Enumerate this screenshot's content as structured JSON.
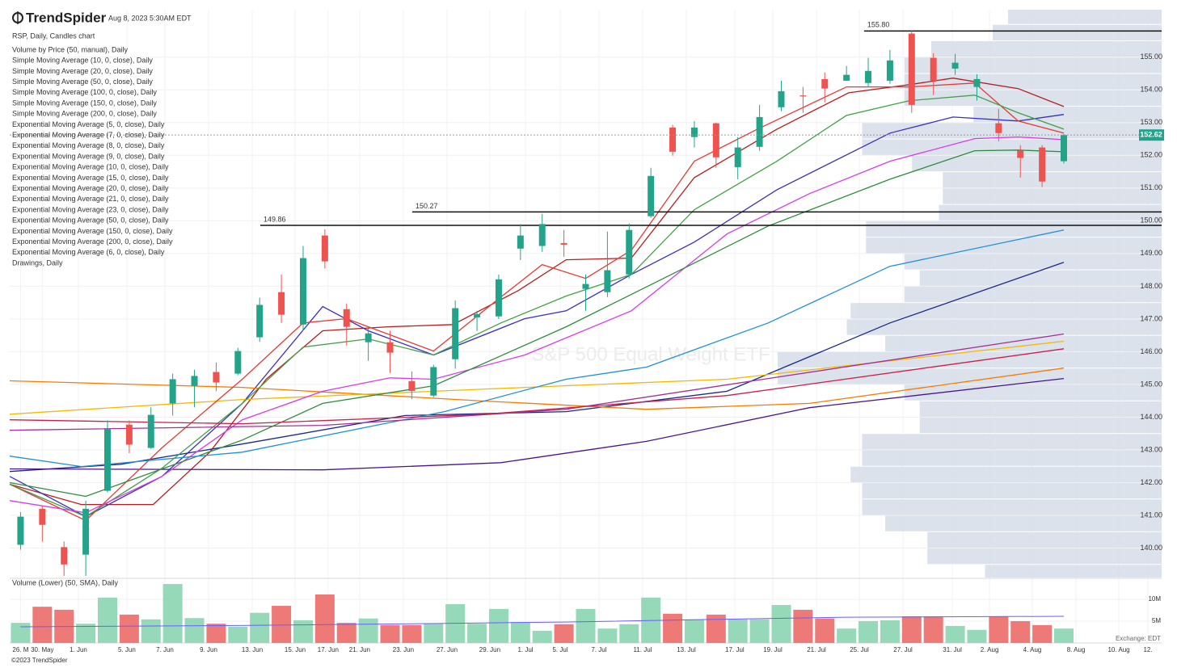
{
  "brand": "TrendSpider",
  "timestamp": "Aug 8, 2023 5:30AM EDT",
  "footer": "©2023 TrendSpider",
  "exchange": "Exchange: EDT",
  "chart_data": {
    "type": "candlestick",
    "subtitle": "RSP, Daily, Candles chart",
    "watermark": "S&P 500 Equal Weight ETF",
    "up_color": "#22a38a",
    "down_color": "#ef5350",
    "xlim": [
      -0.5,
      52.5
    ],
    "xticks": [
      {
        "value": 0,
        "label": "26. M"
      },
      {
        "value": 1,
        "label": "30. May"
      },
      {
        "value": 2.66,
        "label": "1. Jun"
      },
      {
        "value": 4.89,
        "label": "5. Jun"
      },
      {
        "value": 6.64,
        "label": "7. Jun"
      },
      {
        "value": 8.65,
        "label": "9. Jun"
      },
      {
        "value": 10.66,
        "label": "13. Jun"
      },
      {
        "value": 12.63,
        "label": "15. Jun"
      },
      {
        "value": 14.15,
        "label": "17. Jun"
      },
      {
        "value": 15.6,
        "label": "21. Jun"
      },
      {
        "value": 17.61,
        "label": "23. Jun"
      },
      {
        "value": 19.62,
        "label": "27. Jun"
      },
      {
        "value": 21.59,
        "label": "29. Jun"
      },
      {
        "value": 23.23,
        "label": "1. Jul"
      },
      {
        "value": 24.83,
        "label": "5. Jul"
      },
      {
        "value": 26.61,
        "label": "7. Jul"
      },
      {
        "value": 28.62,
        "label": "11. Jul"
      },
      {
        "value": 30.63,
        "label": "13. Jul"
      },
      {
        "value": 32.86,
        "label": "17. Jul"
      },
      {
        "value": 34.61,
        "label": "19. Jul"
      },
      {
        "value": 36.62,
        "label": "21. Jul"
      },
      {
        "value": 38.59,
        "label": "25. Jul"
      },
      {
        "value": 40.6,
        "label": "27. Jul"
      },
      {
        "value": 42.87,
        "label": "31. Jul"
      },
      {
        "value": 44.58,
        "label": "2. Aug"
      },
      {
        "value": 46.55,
        "label": "4. Aug"
      },
      {
        "value": 48.56,
        "label": "8. Aug"
      },
      {
        "value": 50.53,
        "label": "10. Aug"
      },
      {
        "value": 51.87,
        "label": "12."
      }
    ],
    "ylim": [
      139.1,
      156.45
    ],
    "yticks": [
      {
        "value": 140,
        "label": "140.00"
      },
      {
        "value": 141,
        "label": "141.00"
      },
      {
        "value": 142,
        "label": "142.00"
      },
      {
        "value": 143,
        "label": "143.00"
      },
      {
        "value": 144,
        "label": "144.00"
      },
      {
        "value": 145,
        "label": "145.00"
      },
      {
        "value": 146,
        "label": "146.00"
      },
      {
        "value": 147,
        "label": "147.00"
      },
      {
        "value": 148,
        "label": "148.00"
      },
      {
        "value": 149,
        "label": "149.00"
      },
      {
        "value": 150,
        "label": "150.00"
      },
      {
        "value": 151,
        "label": "151.00"
      },
      {
        "value": 152,
        "label": "152.00"
      },
      {
        "value": 153,
        "label": "153.00"
      },
      {
        "value": 154,
        "label": "154.00"
      },
      {
        "value": 155,
        "label": "155.00"
      }
    ],
    "grid": true,
    "last_price": 152.62,
    "open": [
      140.1,
      141.2,
      140.03,
      139.8,
      141.75,
      143.77,
      143.06,
      144.42,
      144.96,
      145.38,
      145.33,
      146.44,
      147.82,
      146.83,
      149.55,
      147.3,
      146.29,
      146.29,
      145.1,
      144.66,
      145.77,
      147.05,
      147.08,
      149.15,
      149.23,
      149.32,
      147.92,
      147.82,
      148.36,
      150.14,
      152.85,
      152.56,
      152.98,
      151.64,
      152.26,
      153.47,
      153.83,
      154.33,
      154.28,
      154.21,
      154.28,
      155.72,
      154.98,
      154.65,
      154.09,
      152.98,
      152.14,
      152.24,
      151.82
    ],
    "high": [
      141.1,
      141.3,
      140.2,
      141.45,
      143.9,
      143.9,
      144.3,
      145.33,
      145.45,
      145.67,
      146.12,
      147.65,
      148.36,
      149.23,
      149.74,
      147.47,
      146.76,
      146.64,
      145.4,
      145.6,
      147.57,
      147.25,
      148.36,
      149.9,
      150.21,
      149.72,
      148.36,
      149.67,
      149.92,
      151.62,
      152.93,
      153.05,
      153.0,
      152.56,
      153.54,
      154.28,
      154.09,
      154.53,
      154.73,
      154.98,
      155.22,
      155.8,
      155.12,
      155.1,
      154.48,
      153.42,
      152.31,
      152.31,
      152.65
    ],
    "low": [
      139.95,
      140.2,
      139.15,
      139.15,
      141.7,
      142.9,
      143.03,
      144.05,
      144.3,
      144.79,
      145.28,
      146.3,
      146.88,
      146.64,
      148.54,
      146.19,
      145.72,
      145.35,
      144.55,
      144.61,
      145.48,
      146.63,
      147.0,
      148.8,
      149.05,
      148.9,
      147.25,
      147.67,
      148.24,
      150.09,
      151.99,
      152.24,
      151.62,
      151.27,
      152.14,
      153.35,
      153.3,
      153.62,
      154.28,
      154.09,
      154.19,
      153.3,
      153.84,
      154.46,
      153.67,
      152.43,
      151.32,
      151.03,
      151.75
    ],
    "close": [
      140.96,
      140.71,
      139.5,
      141.2,
      143.63,
      143.16,
      144.07,
      145.16,
      145.26,
      145.06,
      146.02,
      147.43,
      147.13,
      148.86,
      148.76,
      146.76,
      146.56,
      145.97,
      144.8,
      145.53,
      147.33,
      147.15,
      148.21,
      149.55,
      149.9,
      149.27,
      148.07,
      148.49,
      149.72,
      151.37,
      152.11,
      152.85,
      151.94,
      152.24,
      153.17,
      153.96,
      153.8,
      154.04,
      154.46,
      154.58,
      154.9,
      153.54,
      154.28,
      154.83,
      154.33,
      152.68,
      151.92,
      151.2,
      152.62
    ],
    "series": [
      {
        "name": "Volume by Price (50, manual), Daily",
        "color": "#5b8ac9",
        "xlim": [
          0,
          300
        ],
        "bins": [
          139,
          139.5,
          140,
          140.5,
          141,
          141.5,
          142,
          142.5,
          143,
          143.5,
          144,
          144.5,
          145,
          145.5,
          146,
          146.5,
          147,
          147.5,
          148,
          148.5,
          149,
          149.5,
          150,
          150.5,
          151,
          151.5,
          152,
          152.5,
          153,
          153.5,
          154,
          154.5,
          155,
          155.5,
          156,
          156.5
        ],
        "values": [
          46,
          61,
          61,
          72,
          78,
          78,
          81,
          78,
          78,
          63,
          63,
          67,
          100,
          100,
          72,
          82,
          81,
          67,
          63,
          67,
          77,
          77,
          58,
          57,
          57,
          65,
          78,
          78,
          49,
          67,
          67,
          67,
          60,
          44,
          40
        ]
      },
      {
        "name": "Simple Moving Average (10, 0, close), Daily",
        "color": "#b71c1c",
        "x": [
          -0.5,
          2.8,
          6.1,
          8.7,
          11.3,
          13.9,
          16.9,
          19.9,
          22.9,
          25.1,
          28.1,
          31.0,
          34.8,
          38.1,
          40.9,
          42.9,
          45.9,
          48
        ],
        "values": [
          141.95,
          141.33,
          141.33,
          142.93,
          145.16,
          146.64,
          146.76,
          146.83,
          147.87,
          148.81,
          148.86,
          151.32,
          152.8,
          153.91,
          154.16,
          154.36,
          154.04,
          153.49
        ]
      },
      {
        "name": "Simple Moving Average (20, 0, close), Daily",
        "color": "#3a2fc0",
        "x": [
          -0.5,
          3.0,
          6.5,
          10.2,
          13.9,
          16.0,
          19.0,
          23.2,
          25.1,
          28.1,
          31.0,
          34.8,
          40.0,
          42.9,
          45.9,
          48
        ],
        "values": [
          142.19,
          140.96,
          142.19,
          144.42,
          147.38,
          146.64,
          145.9,
          147.01,
          147.25,
          148.36,
          149.35,
          150.95,
          152.68,
          153.17,
          153.05,
          153.25
        ]
      },
      {
        "name": "Simple Moving Average (50, 0, close), Daily",
        "color": "#1a2a8a",
        "x": [
          -0.5,
          4.6,
          10.2,
          17.7,
          25.1,
          32.5,
          40.0,
          48
        ],
        "values": [
          142.34,
          142.56,
          143.18,
          144.05,
          144.17,
          144.79,
          146.88,
          148.73
        ]
      },
      {
        "name": "Simple Moving Average (100, 0, close), Daily",
        "color": "#f57c00",
        "x": [
          -0.5,
          10.2,
          21.4,
          28.8,
          36.3,
          48
        ],
        "values": [
          145.11,
          144.91,
          144.49,
          144.24,
          144.42,
          145.5
        ]
      },
      {
        "name": "Simple Moving Average (150, 0, close), Daily",
        "color": "#f5b800",
        "x": [
          -0.5,
          10.2,
          21.4,
          32.5,
          48
        ],
        "values": [
          144.09,
          144.54,
          144.86,
          145.16,
          146.32
        ]
      },
      {
        "name": "Simple Moving Average (200, 0, close), Daily",
        "color": "#4a148c",
        "x": [
          -0.5,
          13.9,
          22.1,
          28.8,
          36.3,
          48
        ],
        "values": [
          142.42,
          142.39,
          142.61,
          143.26,
          144.29,
          145.18
        ]
      },
      {
        "name": "Exponential Moving Average (5, 0, close), Daily",
        "color": "#e53935",
        "x": [
          -0.5,
          3.0,
          6.5,
          10.2,
          13.0,
          15.0,
          19.0,
          22.0,
          24.0,
          26.0,
          28.1,
          31.0,
          33.9,
          38.0,
          40.9,
          43.9,
          45.9,
          48
        ],
        "values": [
          141.95,
          140.84,
          143.06,
          145.16,
          146.88,
          147.01,
          146.02,
          147.62,
          148.66,
          148.24,
          149.1,
          151.82,
          152.8,
          154.09,
          154.09,
          154.21,
          153.05,
          152.68
        ]
      },
      {
        "name": "Exponential Moving Average (7, 0, close), Daily",
        "color": "#29a9e0"
      },
      {
        "name": "Exponential Moving Average (8, 0, close), Daily",
        "color": "#f2b21e"
      },
      {
        "name": "Exponential Moving Average (9, 0, close), Daily",
        "color": "#d2461a"
      },
      {
        "name": "Exponential Moving Average (10, 0, close), Daily",
        "color": "#43a047",
        "x": [
          -0.5,
          3.0,
          6.5,
          10.2,
          13.0,
          16.0,
          19.0,
          22.1,
          25.1,
          28.1,
          31.0,
          34.8,
          38.0,
          40.9,
          43.9,
          45.9,
          48
        ],
        "values": [
          141.95,
          140.96,
          142.44,
          144.42,
          146.14,
          146.39,
          145.9,
          146.88,
          147.7,
          148.36,
          150.34,
          151.82,
          153.22,
          153.67,
          153.84,
          153.3,
          152.8
        ]
      },
      {
        "name": "Exponential Moving Average (15, 0, close), Daily",
        "color": "#4a3fc8"
      },
      {
        "name": "Exponential Moving Average (20, 0, close), Daily",
        "color": "#d63be8",
        "x": [
          -0.5,
          3.0,
          6.5,
          10.2,
          13.9,
          17.0,
          19.0,
          23.2,
          28.1,
          32.5,
          36.3,
          40.0,
          43.9,
          45.9,
          48
        ],
        "values": [
          141.45,
          141.08,
          142.19,
          143.92,
          144.79,
          145.2,
          145.16,
          145.9,
          147.25,
          149.6,
          150.83,
          151.82,
          152.51,
          152.56,
          152.48
        ]
      },
      {
        "name": "Exponential Moving Average (21, 0, close), Daily",
        "color": "#f0891a"
      },
      {
        "name": "Exponential Moving Average (23, 0, close), Daily",
        "color": "#2e8b3e",
        "x": [
          -0.5,
          3.0,
          10.2,
          13.9,
          19.0,
          25.1,
          30.7,
          34.4,
          40.0,
          43.9,
          45.9,
          48
        ],
        "values": [
          142.0,
          141.58,
          143.3,
          144.42,
          144.96,
          146.76,
          148.61,
          149.84,
          151.27,
          152.14,
          152.16,
          152.11
        ]
      },
      {
        "name": "Exponential Moving Average (50, 0, close), Daily",
        "color": "#1e90d8",
        "x": [
          -0.5,
          2.8,
          10.2,
          19.5,
          25.1,
          28.8,
          34.4,
          40.0,
          48
        ],
        "values": [
          142.81,
          142.49,
          142.93,
          144.17,
          145.16,
          145.53,
          146.88,
          148.61,
          149.72
        ]
      },
      {
        "name": "Exponential Moving Average (150, 0, close), Daily",
        "color": "#a0309a",
        "x": [
          -0.5,
          13.9,
          25.1,
          34.4,
          48
        ],
        "values": [
          143.6,
          143.75,
          144.24,
          145.18,
          146.54
        ]
      },
      {
        "name": "Exponential Moving Average (200, 0, close), Daily",
        "color": "#c8204a",
        "x": [
          -0.5,
          10.2,
          21.4,
          32.5,
          48
        ],
        "values": [
          143.92,
          143.8,
          144.09,
          144.66,
          146.09
        ]
      },
      {
        "name": "Exponential Moving Average (6, 0, close), Daily",
        "color": "#6a4fc8"
      },
      {
        "name": "Drawings, Daily",
        "color": "#333333",
        "levels": [
          {
            "value": 149.86,
            "label": "149.86",
            "x": 11.03
          },
          {
            "value": 150.27,
            "label": "150.27",
            "x": 18.02
          },
          {
            "value": 155.8,
            "label": "155.80",
            "x": 38.81
          }
        ]
      }
    ],
    "volume": {
      "name": "Volume (Lower) (50, SMA), Daily",
      "up_color": "#95d9b8",
      "down_color": "#ee7a78",
      "sma_color": "#6b5cff",
      "ylim": [
        0,
        14.8
      ],
      "yticks": [
        {
          "value": 5,
          "label": "5M"
        },
        {
          "value": 10,
          "label": "10M"
        }
      ],
      "values": [
        4.6,
        8.3,
        7.6,
        4.4,
        10.4,
        6.5,
        5.4,
        13.5,
        5.7,
        4.4,
        3.7,
        6.9,
        8.5,
        5.2,
        11.1,
        4.6,
        5.6,
        4.1,
        4.1,
        4.4,
        8.9,
        4.4,
        7.8,
        4.8,
        2.8,
        4.3,
        7.8,
        3.3,
        4.3,
        10.4,
        6.7,
        5.4,
        6.5,
        5.4,
        5.4,
        8.7,
        7.6,
        5.6,
        3.3,
        5.0,
        5.2,
        6.1,
        6.1,
        3.9,
        3.0,
        6.1,
        5.0,
        4.1,
        3.3
      ],
      "sma": {
        "x": [
          0,
          10,
          18,
          25,
          32,
          38,
          48
        ],
        "values": [
          3.7,
          4.0,
          4.4,
          4.8,
          5.4,
          5.9,
          6.1
        ]
      }
    }
  }
}
